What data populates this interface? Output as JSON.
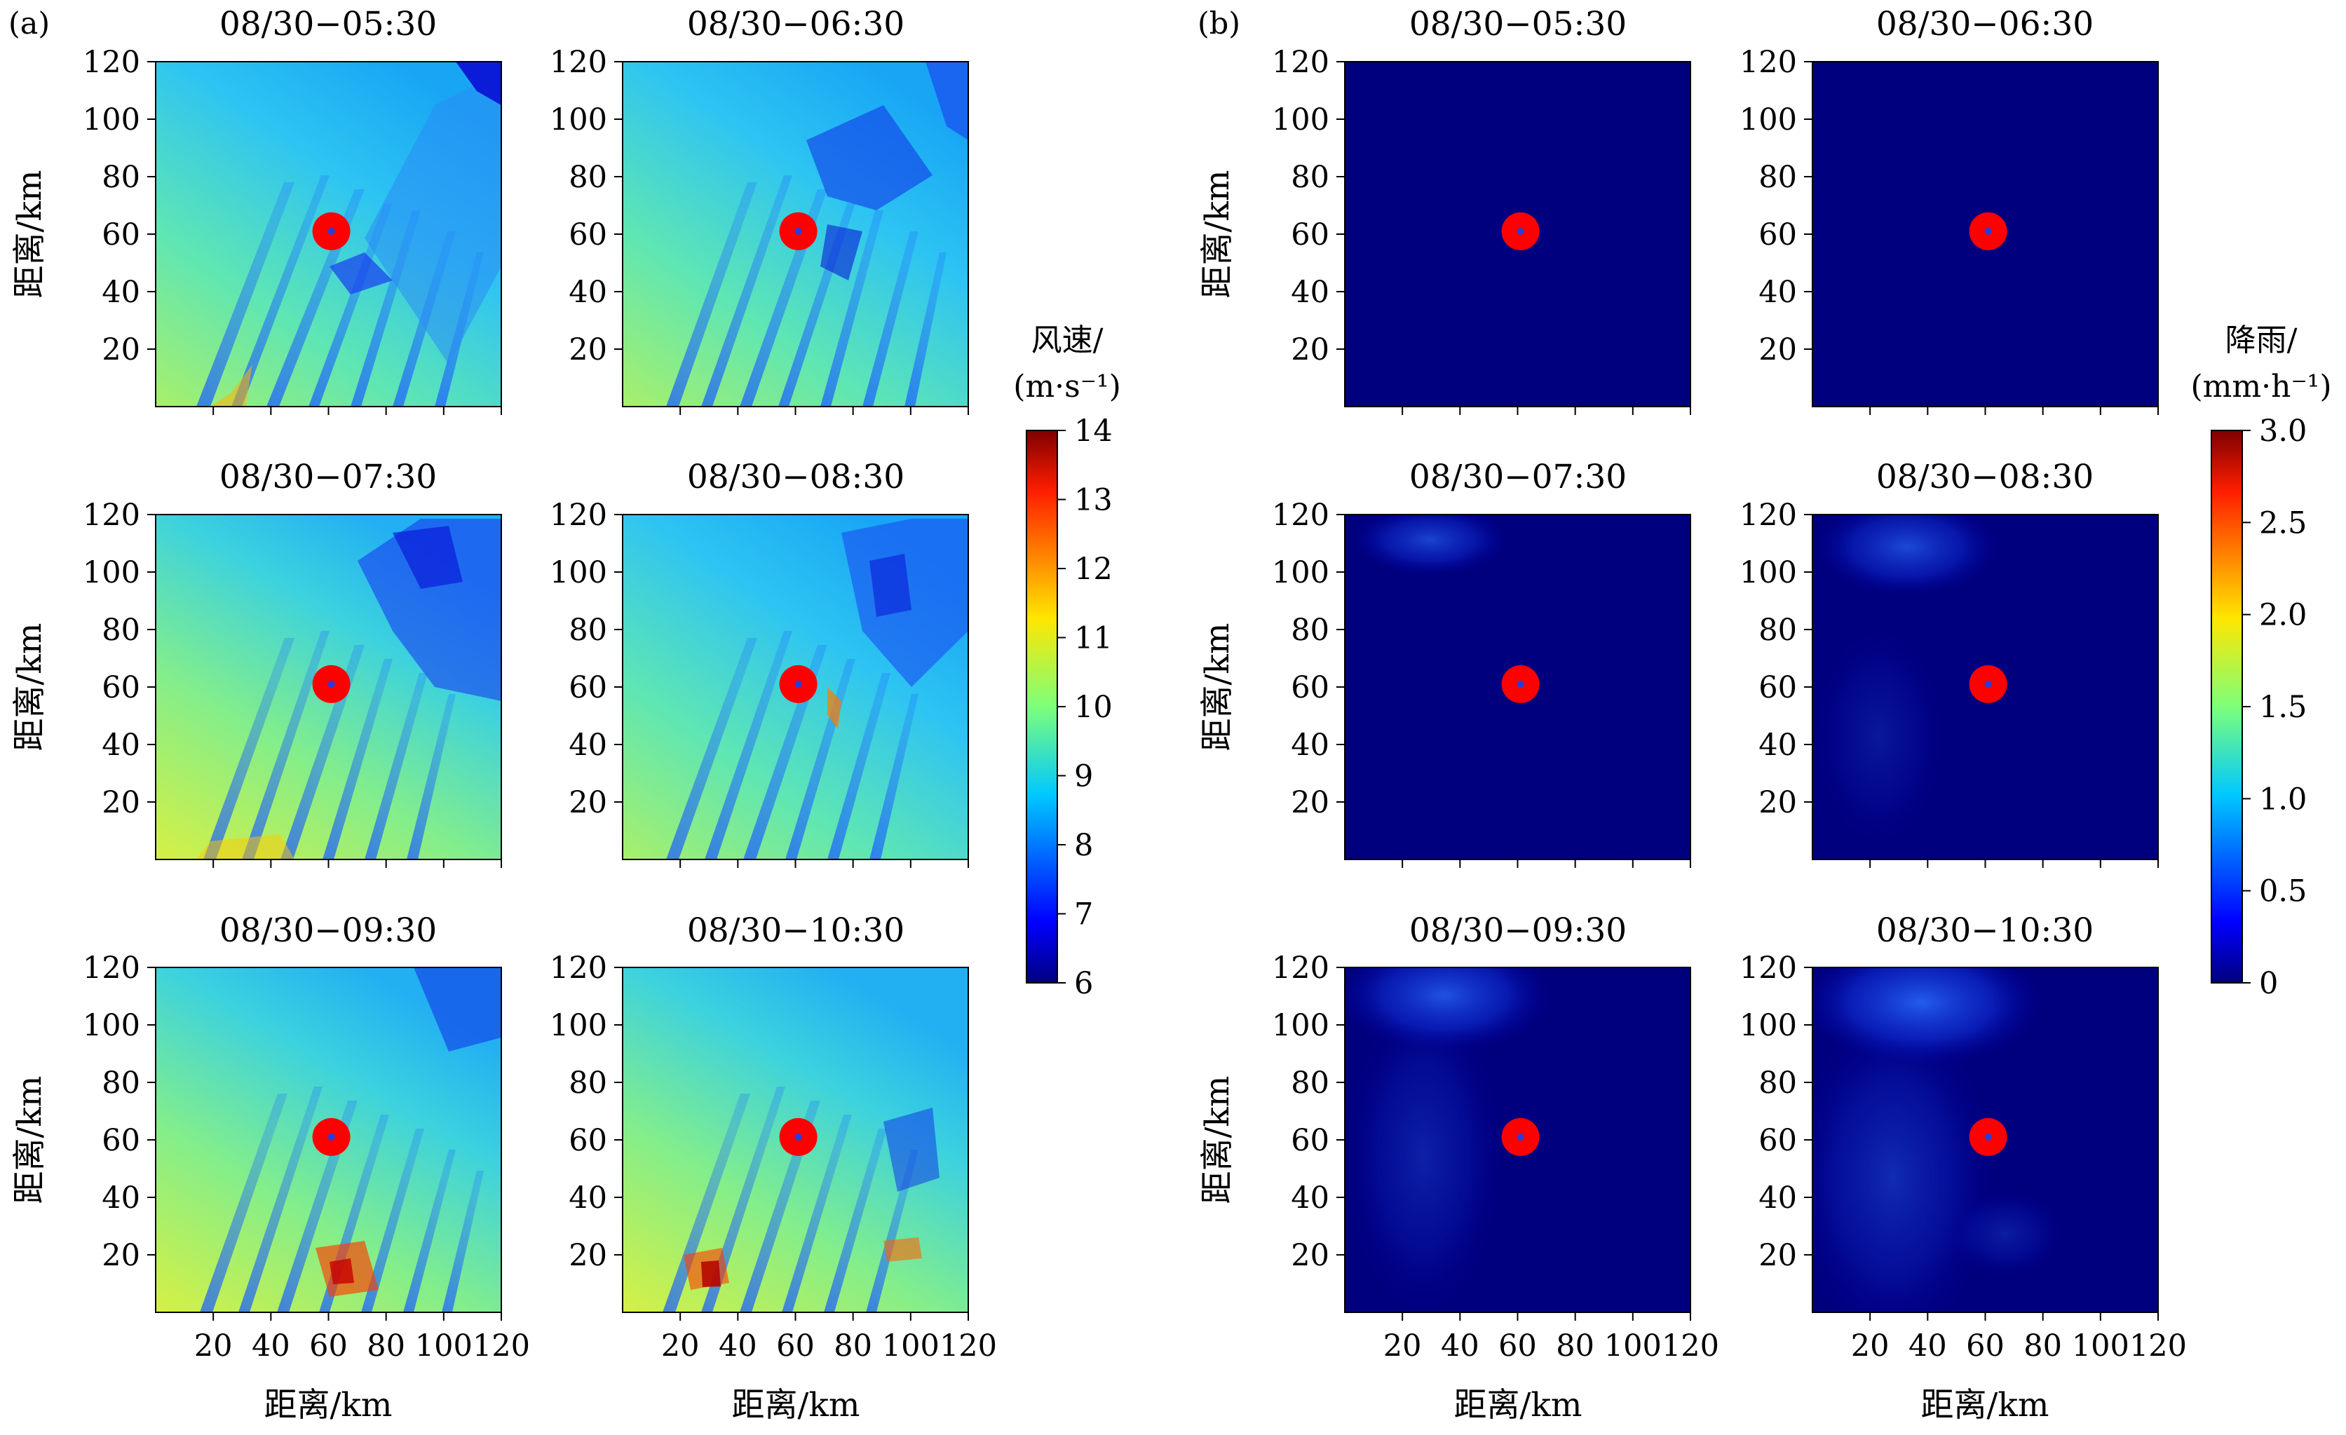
{
  "chart_data": {
    "type": "heatmap",
    "panels": [
      {
        "label": "(a)",
        "variable": "wind speed",
        "colorbar": {
          "label_line1": "风速/",
          "label_line2": "(m·s⁻¹)",
          "range": [
            6,
            14
          ],
          "ticks": [
            "6",
            "7",
            "8",
            "9",
            "10",
            "11",
            "12",
            "13",
            "14"
          ],
          "colormap": "jet"
        },
        "subplots": [
          {
            "title": "08/30−05:30",
            "mean_value": 9.6
          },
          {
            "title": "08/30−06:30",
            "mean_value": 9.3
          },
          {
            "title": "08/30−07:30",
            "mean_value": 9.7
          },
          {
            "title": "08/30−08:30",
            "mean_value": 9.4
          },
          {
            "title": "08/30−09:30",
            "mean_value": 9.9
          },
          {
            "title": "08/30−10:30",
            "mean_value": 9.6
          }
        ]
      },
      {
        "label": "(b)",
        "variable": "rainfall",
        "colorbar": {
          "label_line1": "降雨/",
          "label_line2": "(mm·h⁻¹)",
          "range": [
            0,
            3
          ],
          "ticks": [
            "0",
            "0.5",
            "1.0",
            "1.5",
            "2.0",
            "2.5",
            "3.0"
          ],
          "colormap": "jet"
        },
        "subplots": [
          {
            "title": "08/30−05:30",
            "max_value": 0.0
          },
          {
            "title": "08/30−06:30",
            "max_value": 0.0
          },
          {
            "title": "08/30−07:30",
            "max_value": 0.35
          },
          {
            "title": "08/30−08:30",
            "max_value": 0.4
          },
          {
            "title": "08/30−09:30",
            "max_value": 0.6
          },
          {
            "title": "08/30−10:30",
            "max_value": 0.8
          }
        ]
      }
    ],
    "x_axis": {
      "label": "距离/km",
      "range": [
        0,
        120
      ],
      "ticks": [
        "20",
        "40",
        "60",
        "80",
        "100",
        "120"
      ]
    },
    "y_axis": {
      "label": "距离/km",
      "range": [
        0,
        120
      ],
      "ticks": [
        "20",
        "40",
        "60",
        "80",
        "100",
        "120"
      ]
    },
    "marker": {
      "x": 61,
      "y": 61,
      "description": "red circle marking site location",
      "color": "#ff0000"
    }
  }
}
